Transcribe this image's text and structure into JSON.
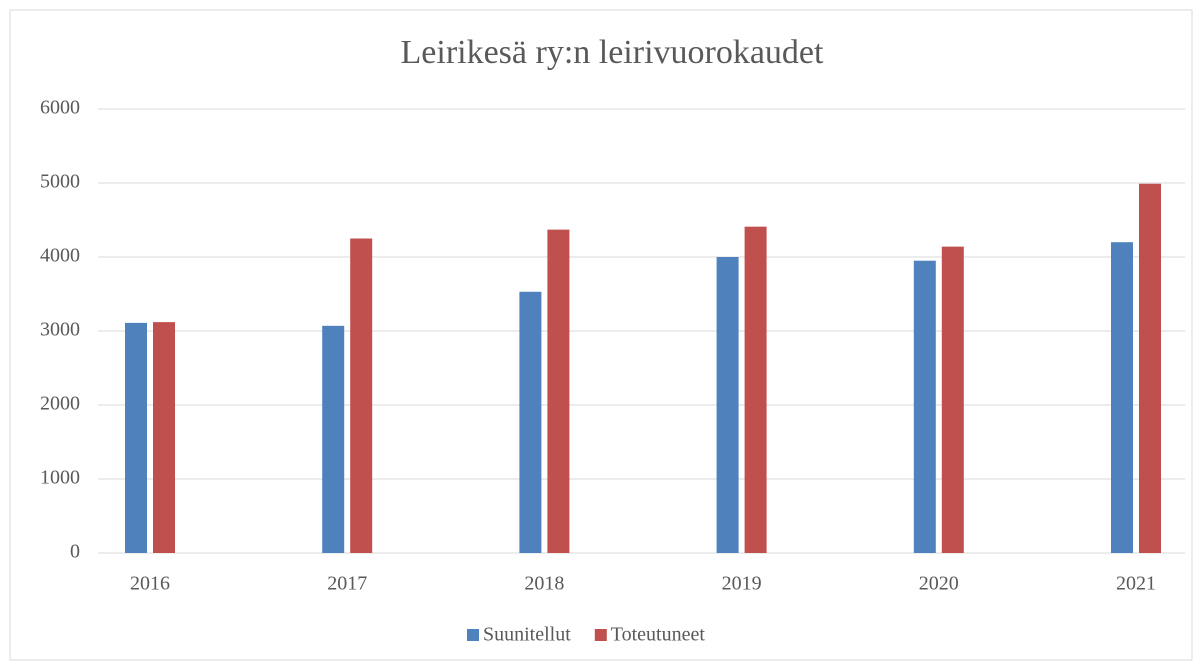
{
  "chart_data": {
    "type": "bar",
    "title": "Leirikesä ry:n leirivuorokaudet",
    "categories": [
      "2016",
      "2017",
      "2018",
      "2019",
      "2020",
      "2021"
    ],
    "series": [
      {
        "name": "Suunitellut",
        "color": "#4f81bd",
        "values": [
          3110,
          3070,
          3530,
          4000,
          3950,
          4200
        ]
      },
      {
        "name": "Toteutuneet",
        "color": "#c0504d",
        "values": [
          3120,
          4250,
          4370,
          4410,
          4140,
          4990
        ]
      }
    ],
    "ylim": [
      0,
      6000
    ],
    "yticks": [
      0,
      1000,
      2000,
      3000,
      4000,
      5000,
      6000
    ],
    "grid": true,
    "legend": "bottom"
  }
}
